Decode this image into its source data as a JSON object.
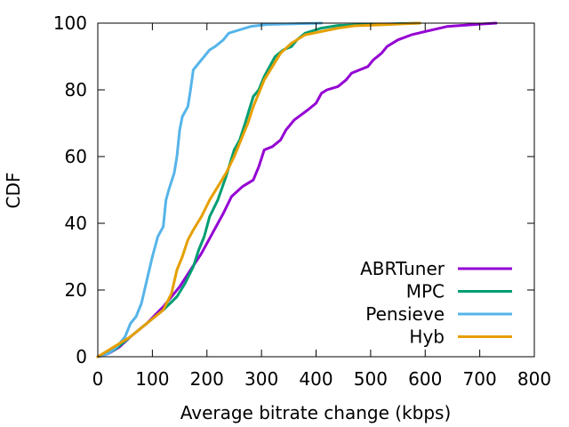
{
  "chart_data": {
    "type": "line",
    "title": "",
    "xlabel": "Average bitrate change (kbps)",
    "ylabel": "CDF",
    "xlim": [
      0,
      800
    ],
    "ylim": [
      0,
      100
    ],
    "xticks": [
      0,
      100,
      200,
      300,
      400,
      500,
      600,
      700,
      800
    ],
    "yticks": [
      0,
      20,
      40,
      60,
      80,
      100
    ],
    "grid": false,
    "legend_position": "bottom-right",
    "series": [
      {
        "name": "ABRTuner",
        "color": "#9400d3",
        "points": [
          [
            0,
            0
          ],
          [
            20,
            1
          ],
          [
            40,
            3
          ],
          [
            60,
            6
          ],
          [
            90,
            10
          ],
          [
            120,
            15
          ],
          [
            150,
            21
          ],
          [
            170,
            26
          ],
          [
            190,
            31
          ],
          [
            210,
            37
          ],
          [
            230,
            43
          ],
          [
            245,
            48
          ],
          [
            265,
            51
          ],
          [
            285,
            53
          ],
          [
            295,
            57
          ],
          [
            305,
            62
          ],
          [
            320,
            63
          ],
          [
            335,
            65
          ],
          [
            345,
            68
          ],
          [
            360,
            71
          ],
          [
            385,
            74
          ],
          [
            400,
            76
          ],
          [
            410,
            79
          ],
          [
            420,
            80
          ],
          [
            440,
            81
          ],
          [
            455,
            83
          ],
          [
            465,
            85
          ],
          [
            480,
            86
          ],
          [
            495,
            87
          ],
          [
            505,
            89
          ],
          [
            520,
            91
          ],
          [
            530,
            93
          ],
          [
            550,
            95
          ],
          [
            575,
            96.5
          ],
          [
            600,
            97.5
          ],
          [
            640,
            99
          ],
          [
            700,
            99.7
          ],
          [
            730,
            100
          ]
        ]
      },
      {
        "name": "MPC",
        "color": "#009e73",
        "points": [
          [
            0,
            0
          ],
          [
            30,
            2
          ],
          [
            60,
            6
          ],
          [
            90,
            10
          ],
          [
            120,
            14
          ],
          [
            145,
            18
          ],
          [
            160,
            22
          ],
          [
            175,
            27
          ],
          [
            185,
            32
          ],
          [
            195,
            36
          ],
          [
            205,
            42
          ],
          [
            220,
            47
          ],
          [
            235,
            54
          ],
          [
            250,
            62
          ],
          [
            260,
            65
          ],
          [
            270,
            70
          ],
          [
            285,
            78
          ],
          [
            295,
            80
          ],
          [
            305,
            84
          ],
          [
            315,
            87
          ],
          [
            325,
            90
          ],
          [
            340,
            92
          ],
          [
            355,
            93
          ],
          [
            365,
            95
          ],
          [
            380,
            97
          ],
          [
            410,
            98.5
          ],
          [
            440,
            99.3
          ],
          [
            500,
            99.6
          ],
          [
            590,
            100
          ]
        ]
      },
      {
        "name": "Pensieve",
        "color": "#56b4e9",
        "points": [
          [
            0,
            0
          ],
          [
            20,
            1
          ],
          [
            35,
            3
          ],
          [
            50,
            6
          ],
          [
            60,
            10
          ],
          [
            70,
            12
          ],
          [
            80,
            16
          ],
          [
            90,
            23
          ],
          [
            100,
            30
          ],
          [
            110,
            36
          ],
          [
            120,
            39
          ],
          [
            125,
            47
          ],
          [
            130,
            50
          ],
          [
            140,
            55
          ],
          [
            145,
            60
          ],
          [
            150,
            68
          ],
          [
            155,
            72
          ],
          [
            165,
            75
          ],
          [
            170,
            80
          ],
          [
            175,
            86
          ],
          [
            185,
            88
          ],
          [
            195,
            90
          ],
          [
            205,
            92
          ],
          [
            215,
            93
          ],
          [
            230,
            95
          ],
          [
            240,
            97
          ],
          [
            260,
            98
          ],
          [
            280,
            99
          ],
          [
            310,
            99.6
          ],
          [
            410,
            100
          ]
        ]
      },
      {
        "name": "Hyb",
        "color": "#e69f00",
        "points": [
          [
            0,
            0
          ],
          [
            30,
            3
          ],
          [
            60,
            6
          ],
          [
            90,
            10
          ],
          [
            120,
            14
          ],
          [
            135,
            19
          ],
          [
            145,
            26
          ],
          [
            155,
            30
          ],
          [
            165,
            35
          ],
          [
            175,
            38
          ],
          [
            190,
            42
          ],
          [
            205,
            47
          ],
          [
            220,
            51
          ],
          [
            235,
            55
          ],
          [
            250,
            60
          ],
          [
            265,
            66
          ],
          [
            275,
            70
          ],
          [
            285,
            75
          ],
          [
            295,
            79
          ],
          [
            305,
            83
          ],
          [
            320,
            87
          ],
          [
            335,
            91
          ],
          [
            355,
            94
          ],
          [
            380,
            96.5
          ],
          [
            410,
            97.5
          ],
          [
            440,
            98.5
          ],
          [
            470,
            99.2
          ],
          [
            520,
            99.5
          ],
          [
            590,
            100
          ]
        ]
      }
    ]
  }
}
